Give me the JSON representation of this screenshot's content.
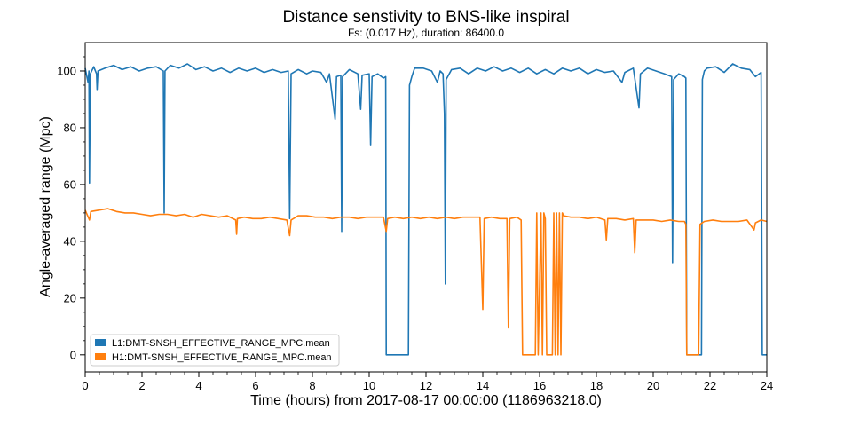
{
  "chart_data": {
    "type": "line",
    "title": "Distance senstivity to BNS-like inspiral",
    "subtitle": "Fs: (0.017 Hz), duration: 86400.0",
    "xlabel": "Time (hours) from 2017-08-17 00:00:00 (1186963218.0)",
    "ylabel": "Angle-averaged range (Mpc)",
    "xlim": [
      0,
      24
    ],
    "ylim": [
      -6,
      110
    ],
    "xticks": [
      "0",
      "2",
      "4",
      "6",
      "8",
      "10",
      "12",
      "14",
      "16",
      "18",
      "20",
      "22",
      "24"
    ],
    "yticks": [
      "0",
      "20",
      "40",
      "60",
      "80",
      "100"
    ],
    "xtick_values": [
      0,
      2,
      4,
      6,
      8,
      10,
      12,
      14,
      16,
      18,
      20,
      22,
      24
    ],
    "ytick_values": [
      0,
      20,
      40,
      60,
      80,
      100
    ],
    "grid": false,
    "legend_position": "lower-left",
    "series": [
      {
        "name": "L1:DMT-SNSH_EFFECTIVE_RANGE_MPC.mean",
        "color": "#1f77b4",
        "points": [
          [
            0,
            101
          ],
          [
            0.1,
            96
          ],
          [
            0.13,
            100
          ],
          [
            0.15,
            60.5
          ],
          [
            0.18,
            99
          ],
          [
            0.3,
            101.5
          ],
          [
            0.4,
            99
          ],
          [
            0.42,
            93.5
          ],
          [
            0.45,
            100
          ],
          [
            0.7,
            101
          ],
          [
            1.0,
            102
          ],
          [
            1.3,
            100.5
          ],
          [
            1.6,
            101.5
          ],
          [
            1.9,
            100
          ],
          [
            2.2,
            101
          ],
          [
            2.5,
            101.5
          ],
          [
            2.75,
            100
          ],
          [
            2.78,
            50
          ],
          [
            2.81,
            100
          ],
          [
            3.0,
            102
          ],
          [
            3.3,
            101
          ],
          [
            3.6,
            102.5
          ],
          [
            3.9,
            100.5
          ],
          [
            4.2,
            101.5
          ],
          [
            4.5,
            100
          ],
          [
            4.8,
            101
          ],
          [
            5.1,
            99.5
          ],
          [
            5.4,
            101
          ],
          [
            5.7,
            100
          ],
          [
            6.0,
            101
          ],
          [
            6.3,
            99.5
          ],
          [
            6.6,
            100.5
          ],
          [
            6.9,
            99.5
          ],
          [
            7.15,
            100
          ],
          [
            7.2,
            48
          ],
          [
            7.25,
            99
          ],
          [
            7.5,
            100.5
          ],
          [
            7.8,
            99
          ],
          [
            8.0,
            100
          ],
          [
            8.3,
            99.5
          ],
          [
            8.5,
            96
          ],
          [
            8.6,
            99
          ],
          [
            8.8,
            83
          ],
          [
            8.85,
            98
          ],
          [
            9.0,
            98.5
          ],
          [
            9.03,
            43.5
          ],
          [
            9.06,
            98
          ],
          [
            9.3,
            100.5
          ],
          [
            9.6,
            99
          ],
          [
            9.7,
            86.5
          ],
          [
            9.75,
            98.5
          ],
          [
            10.0,
            99
          ],
          [
            10.05,
            74
          ],
          [
            10.1,
            98
          ],
          [
            10.3,
            99
          ],
          [
            10.5,
            97.5
          ],
          [
            10.58,
            98
          ],
          [
            10.6,
            0
          ],
          [
            11.38,
            0
          ],
          [
            11.42,
            95
          ],
          [
            11.5,
            98
          ],
          [
            11.6,
            101
          ],
          [
            11.9,
            101
          ],
          [
            12.2,
            100
          ],
          [
            12.4,
            96
          ],
          [
            12.5,
            100
          ],
          [
            12.6,
            99
          ],
          [
            12.65,
            85
          ],
          [
            12.68,
            25
          ],
          [
            12.71,
            97
          ],
          [
            12.9,
            100.5
          ],
          [
            13.2,
            101
          ],
          [
            13.5,
            99
          ],
          [
            13.8,
            101
          ],
          [
            14.1,
            100
          ],
          [
            14.4,
            101.5
          ],
          [
            14.7,
            100
          ],
          [
            15.0,
            101
          ],
          [
            15.3,
            99.5
          ],
          [
            15.6,
            101
          ],
          [
            15.9,
            99
          ],
          [
            16.2,
            100.5
          ],
          [
            16.5,
            99
          ],
          [
            16.8,
            101
          ],
          [
            17.1,
            100
          ],
          [
            17.4,
            101
          ],
          [
            17.7,
            99
          ],
          [
            18.0,
            100.5
          ],
          [
            18.3,
            99.5
          ],
          [
            18.6,
            100
          ],
          [
            18.9,
            96
          ],
          [
            19.0,
            99.5
          ],
          [
            19.3,
            101
          ],
          [
            19.5,
            87
          ],
          [
            19.55,
            99
          ],
          [
            19.8,
            101
          ],
          [
            20.1,
            100
          ],
          [
            20.4,
            99
          ],
          [
            20.65,
            98
          ],
          [
            20.68,
            32.5
          ],
          [
            20.72,
            97
          ],
          [
            20.9,
            99
          ],
          [
            21.1,
            98
          ],
          [
            21.15,
            97.5
          ],
          [
            21.18,
            0
          ],
          [
            21.7,
            0
          ],
          [
            21.73,
            97
          ],
          [
            21.8,
            100
          ],
          [
            21.9,
            101
          ],
          [
            22.2,
            101.5
          ],
          [
            22.5,
            99.5
          ],
          [
            22.8,
            102.5
          ],
          [
            23.1,
            101
          ],
          [
            23.4,
            100.5
          ],
          [
            23.6,
            98
          ],
          [
            23.8,
            99.5
          ],
          [
            23.84,
            0
          ],
          [
            24,
            0
          ]
        ]
      },
      {
        "name": "H1:DMT-SNSH_EFFECTIVE_RANGE_MPC.mean",
        "color": "#ff7f0e",
        "points": [
          [
            0,
            51
          ],
          [
            0.15,
            47.5
          ],
          [
            0.2,
            50.5
          ],
          [
            0.5,
            51
          ],
          [
            0.8,
            51.5
          ],
          [
            1.1,
            50.5
          ],
          [
            1.4,
            50
          ],
          [
            1.7,
            50
          ],
          [
            2.0,
            49.5
          ],
          [
            2.3,
            49
          ],
          [
            2.6,
            49.5
          ],
          [
            2.9,
            49.5
          ],
          [
            3.2,
            49
          ],
          [
            3.5,
            49.5
          ],
          [
            3.8,
            48.5
          ],
          [
            4.1,
            49.5
          ],
          [
            4.4,
            49
          ],
          [
            4.7,
            48.5
          ],
          [
            5.0,
            49
          ],
          [
            5.3,
            47.5
          ],
          [
            5.33,
            42.5
          ],
          [
            5.36,
            48
          ],
          [
            5.6,
            48.5
          ],
          [
            5.9,
            48
          ],
          [
            6.2,
            48
          ],
          [
            6.5,
            48.5
          ],
          [
            6.8,
            48
          ],
          [
            7.1,
            47.5
          ],
          [
            7.2,
            42
          ],
          [
            7.25,
            47.5
          ],
          [
            7.5,
            49
          ],
          [
            7.8,
            49
          ],
          [
            8.1,
            48.5
          ],
          [
            8.4,
            48.5
          ],
          [
            8.7,
            48
          ],
          [
            9.0,
            48.5
          ],
          [
            9.3,
            48.5
          ],
          [
            9.6,
            48
          ],
          [
            9.9,
            48.5
          ],
          [
            10.2,
            48.5
          ],
          [
            10.5,
            48.5
          ],
          [
            10.6,
            43.5
          ],
          [
            10.65,
            48
          ],
          [
            10.9,
            48.5
          ],
          [
            11.2,
            48
          ],
          [
            11.5,
            48.5
          ],
          [
            11.8,
            48
          ],
          [
            12.1,
            48.5
          ],
          [
            12.4,
            48
          ],
          [
            12.7,
            48.5
          ],
          [
            13.0,
            48
          ],
          [
            13.3,
            48.5
          ],
          [
            13.6,
            48.5
          ],
          [
            13.9,
            48.5
          ],
          [
            14.0,
            16
          ],
          [
            14.05,
            48
          ],
          [
            14.3,
            48.5
          ],
          [
            14.6,
            48
          ],
          [
            14.85,
            48
          ],
          [
            14.9,
            9.5
          ],
          [
            14.95,
            48
          ],
          [
            15.2,
            48.5
          ],
          [
            15.35,
            47.5
          ],
          [
            15.4,
            0
          ],
          [
            15.85,
            0
          ],
          [
            15.9,
            50
          ],
          [
            15.95,
            0
          ],
          [
            16.05,
            50
          ],
          [
            16.1,
            0
          ],
          [
            16.15,
            50
          ],
          [
            16.2,
            48
          ],
          [
            16.25,
            0
          ],
          [
            16.45,
            0
          ],
          [
            16.5,
            50
          ],
          [
            16.55,
            0
          ],
          [
            16.6,
            50
          ],
          [
            16.65,
            0
          ],
          [
            16.7,
            50
          ],
          [
            16.75,
            0
          ],
          [
            16.8,
            50
          ],
          [
            16.85,
            49
          ],
          [
            17.1,
            48.5
          ],
          [
            17.4,
            48.5
          ],
          [
            17.7,
            48
          ],
          [
            18.0,
            48.5
          ],
          [
            18.3,
            47.5
          ],
          [
            18.35,
            40.5
          ],
          [
            18.4,
            48
          ],
          [
            18.7,
            48
          ],
          [
            19.0,
            47.5
          ],
          [
            19.3,
            48
          ],
          [
            19.35,
            36
          ],
          [
            19.4,
            47.5
          ],
          [
            19.7,
            47.5
          ],
          [
            20.0,
            47.5
          ],
          [
            20.3,
            47
          ],
          [
            20.6,
            47.5
          ],
          [
            20.9,
            47
          ],
          [
            21.1,
            47
          ],
          [
            21.15,
            46
          ],
          [
            21.18,
            0
          ],
          [
            21.6,
            0
          ],
          [
            21.65,
            46
          ],
          [
            21.8,
            47
          ],
          [
            22.1,
            47.5
          ],
          [
            22.4,
            47
          ],
          [
            22.7,
            47
          ],
          [
            23.0,
            47
          ],
          [
            23.3,
            47.5
          ],
          [
            23.55,
            44
          ],
          [
            23.6,
            46.5
          ],
          [
            23.8,
            47.5
          ],
          [
            24,
            47
          ]
        ]
      }
    ]
  }
}
